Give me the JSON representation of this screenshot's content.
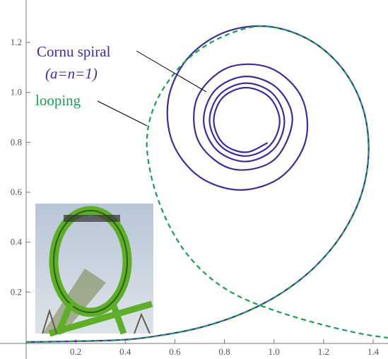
{
  "chart_data": {
    "type": "line",
    "xlim": [
      0,
      1.46
    ],
    "ylim": [
      0,
      1.37
    ],
    "xticks": [
      0.2,
      0.4,
      0.6,
      0.8,
      {
        "value": 1.0,
        "label": "1.0"
      },
      1.2,
      1.4
    ],
    "yticks": [
      0.2,
      0.4,
      0.6,
      0.8,
      {
        "value": 1.0,
        "label": "1.0"
      },
      1.2
    ],
    "annotations": [
      "Cornu spiral",
      "(a=n=1)",
      "looping"
    ],
    "series": [
      {
        "name": "Cornu spiral",
        "color": "#3b2e96",
        "dashed": false,
        "x": [
          0,
          0.354,
          0.531,
          0.705,
          0.873,
          1.03,
          1.169,
          1.281,
          1.356,
          1.382,
          1.354,
          1.268,
          1.132,
          0.963,
          0.789,
          0.648,
          0.574,
          0.591,
          0.699,
          0.865,
          1.031,
          1.128,
          1.111,
          0.984,
          0.811,
          0.689,
          0.696,
          0.829,
          0.997,
          1.074,
          1.015,
          0.886,
          0.763,
          0.716,
          0.769,
          0.886,
          0.999,
          1.042,
          0.995,
          0.886,
          0.781,
          0.74,
          0.785,
          0.886,
          0.984,
          1.023,
          0.981,
          0.886,
          0.793,
          0.757,
          0.795,
          0.886,
          0.974
        ],
        "values": [
          0,
          0.007,
          0.025,
          0.059,
          0.115,
          0.196,
          0.305,
          0.442,
          0.602,
          0.777,
          0.951,
          1.105,
          1.216,
          1.265,
          1.236,
          1.132,
          0.973,
          0.799,
          0.662,
          0.609,
          0.663,
          0.808,
          0.981,
          1.098,
          1.098,
          0.975,
          0.803,
          0.694,
          0.727,
          0.886,
          1.015,
          1.064,
          1.009,
          0.886,
          0.769,
          0.723,
          0.773,
          0.886,
          0.995,
          1.037,
          0.991,
          0.886,
          0.785,
          0.745,
          0.788,
          0.886,
          0.981,
          1.019,
          0.979,
          0.886,
          0.795,
          0.76,
          0.798
        ]
      },
      {
        "name": "looping",
        "color": "#1a9e55",
        "dashed": true,
        "x": [
          0,
          0.354,
          0.531,
          0.705,
          0.873,
          1.03,
          1.169,
          1.281,
          1.356,
          1.382,
          1.354,
          1.268,
          1.132,
          0.963,
          0.806,
          0.664,
          0.564,
          0.507,
          0.487,
          0.499,
          0.53,
          0.578,
          0.65,
          0.749,
          0.863,
          1.006,
          1.177,
          1.348,
          1.459
        ],
        "values": [
          0,
          0.007,
          0.025,
          0.059,
          0.115,
          0.196,
          0.305,
          0.442,
          0.602,
          0.777,
          0.951,
          1.105,
          1.216,
          1.265,
          1.229,
          1.144,
          1.031,
          0.918,
          0.805,
          0.691,
          0.578,
          0.465,
          0.351,
          0.252,
          0.181,
          0.125,
          0.074,
          0.034,
          0.017
        ]
      }
    ]
  }
}
